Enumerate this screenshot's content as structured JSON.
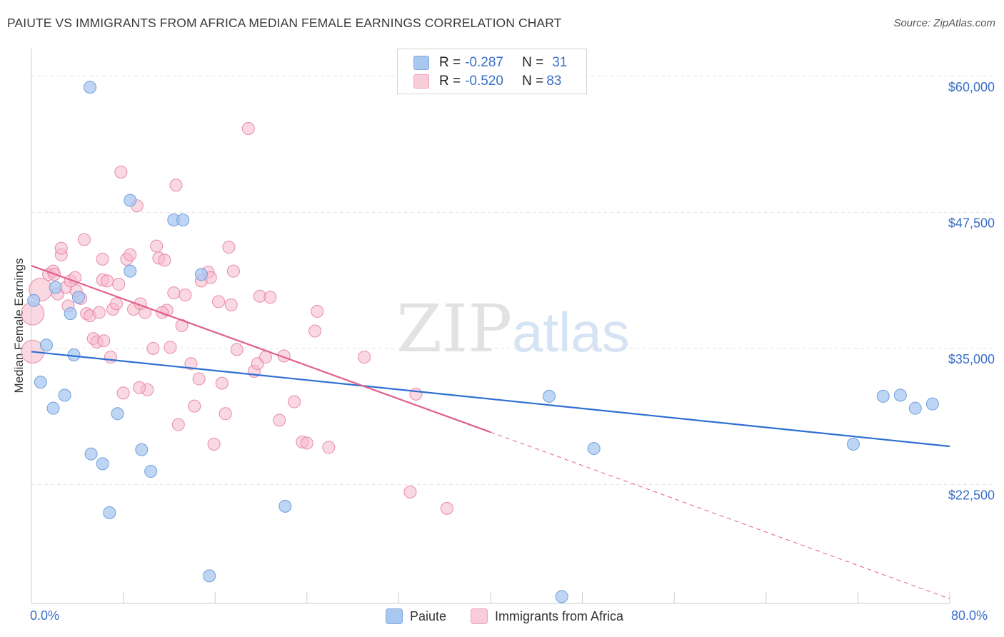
{
  "title": "PAIUTE VS IMMIGRANTS FROM AFRICA MEDIAN FEMALE EARNINGS CORRELATION CHART",
  "source": "Source: ZipAtlas.com",
  "watermark": {
    "zip": "ZIP",
    "atlas": "atlas"
  },
  "legend_stats": [
    {
      "r_label": "R = ",
      "r_value": "-0.287",
      "n_label": "N = ",
      "n_value": "31",
      "color": "#a8c8f0"
    },
    {
      "r_label": "R = ",
      "r_value": "-0.520",
      "n_label": "N = ",
      "n_value": "83",
      "color": "#f5b8cb"
    }
  ],
  "bottom_legend": [
    {
      "label": "Paiute",
      "color": "#a8c8f0"
    },
    {
      "label": "Immigrants from Africa",
      "color": "#f5b8cb"
    }
  ],
  "colors": {
    "blue_line": "#2e6fd2",
    "pink_line": "#e0608a",
    "blue_point_fill": "#a8c8f0",
    "blue_point_stroke": "#6f9fdc",
    "pink_point_fill": "#f5b8cb",
    "pink_point_stroke": "#e88aa8",
    "axis_label": "#3a6fc9",
    "grid": "#e4e4e4"
  },
  "chart_data": {
    "type": "scatter",
    "title": "PAIUTE VS IMMIGRANTS FROM AFRICA MEDIAN FEMALE EARNINGS CORRELATION CHART",
    "xlabel": "",
    "ylabel": "Median Female Earnings",
    "xlim": [
      0,
      80
    ],
    "ylim": [
      11500,
      61500
    ],
    "x_tick_labels": [
      "0.0%",
      "80.0%"
    ],
    "y_ticks": [
      22500,
      35000,
      47500,
      60000
    ],
    "y_tick_labels": [
      "$22,500",
      "$35,000",
      "$47,500",
      "$60,000"
    ],
    "grid": true,
    "legend_position": "top-center",
    "series": [
      {
        "name": "Paiute",
        "r": -0.287,
        "n": 31,
        "trend": {
          "x": [
            0,
            80
          ],
          "y": [
            34700,
            26000
          ],
          "dash_from": null
        },
        "points": [
          {
            "x": 5.1,
            "y": 59000
          },
          {
            "x": 8.6,
            "y": 48600
          },
          {
            "x": 12.4,
            "y": 46800
          },
          {
            "x": 13.2,
            "y": 46800
          },
          {
            "x": 8.6,
            "y": 42100
          },
          {
            "x": 14.8,
            "y": 41800
          },
          {
            "x": 0.2,
            "y": 39400
          },
          {
            "x": 4.1,
            "y": 39700
          },
          {
            "x": 2.1,
            "y": 40600
          },
          {
            "x": 3.4,
            "y": 38200
          },
          {
            "x": 1.3,
            "y": 35300
          },
          {
            "x": 3.7,
            "y": 34400
          },
          {
            "x": 0.8,
            "y": 31900
          },
          {
            "x": 2.9,
            "y": 30700
          },
          {
            "x": 1.9,
            "y": 29500
          },
          {
            "x": 7.5,
            "y": 29000
          },
          {
            "x": 45.1,
            "y": 30600
          },
          {
            "x": 74.2,
            "y": 30600
          },
          {
            "x": 75.7,
            "y": 30700
          },
          {
            "x": 77.0,
            "y": 29500
          },
          {
            "x": 78.5,
            "y": 29900
          },
          {
            "x": 5.2,
            "y": 25300
          },
          {
            "x": 6.2,
            "y": 24400
          },
          {
            "x": 9.6,
            "y": 25700
          },
          {
            "x": 10.4,
            "y": 23700
          },
          {
            "x": 49.0,
            "y": 25800
          },
          {
            "x": 71.6,
            "y": 26200
          },
          {
            "x": 6.8,
            "y": 19900
          },
          {
            "x": 22.1,
            "y": 20500
          },
          {
            "x": 15.5,
            "y": 14100
          },
          {
            "x": 46.2,
            "y": 12200
          }
        ]
      },
      {
        "name": "Immigrants from Africa",
        "r": -0.52,
        "n": 83,
        "trend": {
          "x": [
            0,
            80
          ],
          "y": [
            42600,
            12000
          ],
          "dash_from": 40
        },
        "points": [
          {
            "x": 0.1,
            "y": 38200,
            "big": true
          },
          {
            "x": 0.1,
            "y": 34700,
            "big": true
          },
          {
            "x": 0.8,
            "y": 40400,
            "big": true
          },
          {
            "x": 1.5,
            "y": 41800
          },
          {
            "x": 1.9,
            "y": 42100
          },
          {
            "x": 2.3,
            "y": 40000
          },
          {
            "x": 2.6,
            "y": 43600
          },
          {
            "x": 2.6,
            "y": 44200
          },
          {
            "x": 3.0,
            "y": 40600
          },
          {
            "x": 3.4,
            "y": 41200
          },
          {
            "x": 3.8,
            "y": 41500
          },
          {
            "x": 3.2,
            "y": 38900
          },
          {
            "x": 4.3,
            "y": 39600
          },
          {
            "x": 4.8,
            "y": 38200
          },
          {
            "x": 5.1,
            "y": 38000
          },
          {
            "x": 4.6,
            "y": 45000
          },
          {
            "x": 5.4,
            "y": 35900
          },
          {
            "x": 5.7,
            "y": 35600
          },
          {
            "x": 6.2,
            "y": 41300
          },
          {
            "x": 6.2,
            "y": 43200
          },
          {
            "x": 6.6,
            "y": 41200
          },
          {
            "x": 6.9,
            "y": 34200
          },
          {
            "x": 7.1,
            "y": 38600
          },
          {
            "x": 7.4,
            "y": 39100
          },
          {
            "x": 7.6,
            "y": 40900
          },
          {
            "x": 7.8,
            "y": 51200
          },
          {
            "x": 8.3,
            "y": 43200
          },
          {
            "x": 8.6,
            "y": 43600
          },
          {
            "x": 8.9,
            "y": 38600
          },
          {
            "x": 9.2,
            "y": 48100
          },
          {
            "x": 9.5,
            "y": 39100
          },
          {
            "x": 9.9,
            "y": 38300
          },
          {
            "x": 10.1,
            "y": 31200
          },
          {
            "x": 10.6,
            "y": 35000
          },
          {
            "x": 10.9,
            "y": 44400
          },
          {
            "x": 11.1,
            "y": 43300
          },
          {
            "x": 11.6,
            "y": 43100
          },
          {
            "x": 11.8,
            "y": 38500
          },
          {
            "x": 12.1,
            "y": 35100
          },
          {
            "x": 12.4,
            "y": 40100
          },
          {
            "x": 12.6,
            "y": 50000
          },
          {
            "x": 13.1,
            "y": 37100
          },
          {
            "x": 13.4,
            "y": 39900
          },
          {
            "x": 13.9,
            "y": 33600
          },
          {
            "x": 14.2,
            "y": 29700
          },
          {
            "x": 14.6,
            "y": 32200
          },
          {
            "x": 14.8,
            "y": 41200
          },
          {
            "x": 15.4,
            "y": 42000
          },
          {
            "x": 15.6,
            "y": 41500
          },
          {
            "x": 15.9,
            "y": 26200
          },
          {
            "x": 16.3,
            "y": 39300
          },
          {
            "x": 16.6,
            "y": 31800
          },
          {
            "x": 16.9,
            "y": 29000
          },
          {
            "x": 17.2,
            "y": 44300
          },
          {
            "x": 17.4,
            "y": 39000
          },
          {
            "x": 17.6,
            "y": 42100
          },
          {
            "x": 17.9,
            "y": 34900
          },
          {
            "x": 18.9,
            "y": 55200
          },
          {
            "x": 19.4,
            "y": 32900
          },
          {
            "x": 19.7,
            "y": 33600
          },
          {
            "x": 19.9,
            "y": 39800
          },
          {
            "x": 20.4,
            "y": 34200
          },
          {
            "x": 20.8,
            "y": 39700
          },
          {
            "x": 21.6,
            "y": 28400
          },
          {
            "x": 22.0,
            "y": 34300
          },
          {
            "x": 22.9,
            "y": 30100
          },
          {
            "x": 23.6,
            "y": 26400
          },
          {
            "x": 24.0,
            "y": 26300
          },
          {
            "x": 24.7,
            "y": 36600
          },
          {
            "x": 24.9,
            "y": 38400
          },
          {
            "x": 25.9,
            "y": 25900
          },
          {
            "x": 29.0,
            "y": 34200
          },
          {
            "x": 33.0,
            "y": 21800
          },
          {
            "x": 33.5,
            "y": 30800
          },
          {
            "x": 36.2,
            "y": 20300
          },
          {
            "x": 8.0,
            "y": 30900
          },
          {
            "x": 9.4,
            "y": 31400
          },
          {
            "x": 12.8,
            "y": 28000
          },
          {
            "x": 6.3,
            "y": 35700
          },
          {
            "x": 11.4,
            "y": 38300
          },
          {
            "x": 3.9,
            "y": 40300
          },
          {
            "x": 2.0,
            "y": 41800
          },
          {
            "x": 5.9,
            "y": 38300
          }
        ]
      }
    ]
  }
}
